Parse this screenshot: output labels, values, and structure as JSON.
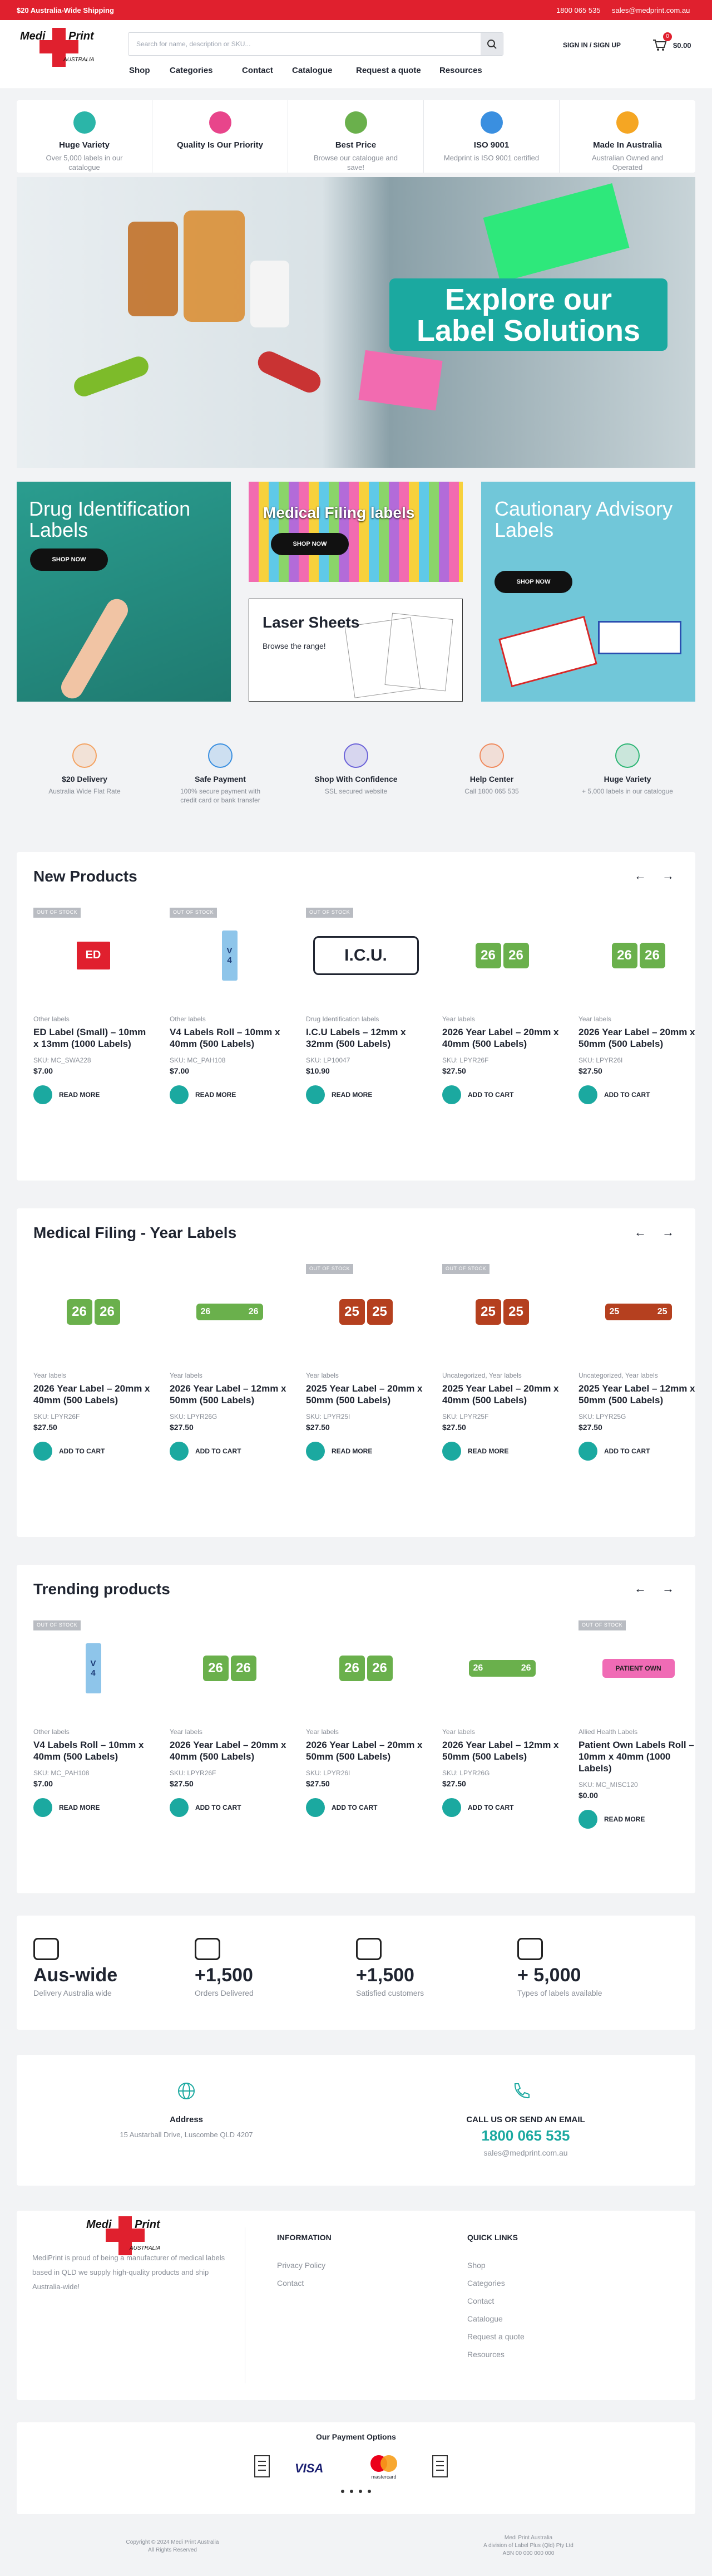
{
  "topbar": {
    "promo": "$20 Australia-Wide Shipping",
    "phone": "1800 065 535",
    "email": "sales@medprint.com.au"
  },
  "header": {
    "logo_main": "Medi Print",
    "logo_sub": "AUSTRALIA",
    "search_placeholder": "Search for name, description or SKU...",
    "signin": "SIGN IN / SIGN UP",
    "cart_count": "0",
    "cart_total": "$0.00",
    "nav": [
      "Shop",
      "Categories",
      "Contact",
      "Catalogue",
      "Request a quote",
      "Resources"
    ]
  },
  "features": [
    {
      "title": "Huge Variety",
      "text": "Over 5,000 labels in our catalogue",
      "color": "#2bb5a8"
    },
    {
      "title": "Quality Is Our Priority",
      "color": "#e8458b"
    },
    {
      "title": "Best Price",
      "text": "Browse our catalogue and save!",
      "color": "#6ab04c"
    },
    {
      "title": "ISO 9001",
      "text": "Medprint is ISO 9001 certified",
      "color": "#3a8fe0"
    },
    {
      "title": "Made In Australia",
      "text": "Australian Owned and Operated",
      "color": "#f5a623"
    }
  ],
  "hero": {
    "lines": [
      "Explore our",
      "Label Solutions"
    ]
  },
  "promos": [
    {
      "title": "Drug Identification Labels",
      "button": "SHOP NOW"
    },
    {
      "title": "Medical Filing labels",
      "button": "SHOP NOW"
    },
    {
      "title": "Laser Sheets",
      "text": "Browse the range!"
    },
    {
      "title": "Cautionary Advisory Labels",
      "button": "SHOP NOW"
    }
  ],
  "services": [
    {
      "title": "$20 Delivery",
      "text": "Australia Wide Flat Rate",
      "color": "#f4a261"
    },
    {
      "title": "Safe Payment",
      "text": "100% secure payment with credit card or bank transfer",
      "color": "#3a8fe0"
    },
    {
      "title": "Shop With Confidence",
      "text": "SSL secured website",
      "color": "#6c63d9"
    },
    {
      "title": "Help Center",
      "text": "Call 1800 065 535",
      "color": "#f08a5d"
    },
    {
      "title": "Huge Variety",
      "text": "+ 5,000 labels in our catalogue",
      "color": "#2bb573"
    }
  ],
  "sections": [
    {
      "title": "New Products",
      "products": [
        {
          "badge": "OUT OF STOCK",
          "category": "Other labels",
          "name": "ED Label (Small) – 10mm x 13mm (1000 Labels)",
          "sku": "SKU: MC_SWA228",
          "price": "$7.00",
          "button": "READ MORE",
          "thumb": {
            "shape": "tag",
            "color": "#e0202e",
            "text": [
              "ED"
            ]
          }
        },
        {
          "badge": "OUT OF STOCK",
          "category": "Other labels",
          "name": "V4 Labels Roll – 10mm x 40mm (500 Labels)",
          "sku": "SKU: MC_PAH108",
          "price": "$7.00",
          "button": "READ MORE",
          "thumb": {
            "shape": "roll",
            "color": "#8ec5ea",
            "text": [
              "V",
              "4"
            ]
          }
        },
        {
          "badge": "OUT OF STOCK",
          "category": "Drug Identification labels",
          "name": "I.C.U Labels – 12mm x 32mm (500 Labels)",
          "sku": "SKU: LP10047",
          "price": "$10.90",
          "button": "READ MORE",
          "thumb": {
            "shape": "outline",
            "color": "#1f2430",
            "text": [
              "I.C.U."
            ]
          }
        },
        {
          "category": "Year labels",
          "name": "2026 Year Label – 20mm x 40mm (500 Labels)",
          "sku": "SKU: LPYR26F",
          "price": "$27.50",
          "button": "ADD TO CART",
          "thumb": {
            "shape": "pair",
            "color": "#6ab04c",
            "text": [
              "26",
              "26"
            ]
          }
        },
        {
          "category": "Year labels",
          "name": "2026 Year Label – 20mm x 50mm (500 Labels)",
          "sku": "SKU: LPYR26I",
          "price": "$27.50",
          "button": "ADD TO CART",
          "thumb": {
            "shape": "pair",
            "color": "#6ab04c",
            "text": [
              "26",
              "26"
            ]
          }
        }
      ]
    },
    {
      "title": "Medical Filing - Year Labels",
      "products": [
        {
          "category": "Year labels",
          "name": "2026 Year Label – 20mm x 40mm (500 Labels)",
          "sku": "SKU: LPYR26F",
          "price": "$27.50",
          "button": "ADD TO CART",
          "thumb": {
            "shape": "pair",
            "color": "#6ab04c",
            "text": [
              "26",
              "26"
            ]
          }
        },
        {
          "category": "Year labels",
          "name": "2026 Year Label – 12mm x 50mm (500 Labels)",
          "sku": "SKU: LPYR26G",
          "price": "$27.50",
          "button": "ADD TO CART",
          "thumb": {
            "shape": "strip",
            "color": "#6ab04c",
            "text": [
              "26",
              "26"
            ]
          }
        },
        {
          "badge": "OUT OF STOCK",
          "category": "Year labels",
          "name": "2025 Year Label – 20mm x 50mm (500 Labels)",
          "sku": "SKU: LPYR25I",
          "price": "$27.50",
          "button": "READ MORE",
          "thumb": {
            "shape": "pair",
            "color": "#b5401f",
            "text": [
              "25",
              "25"
            ]
          }
        },
        {
          "badge": "OUT OF STOCK",
          "category": "Uncategorized, Year labels",
          "name": "2025 Year Label – 20mm x 40mm (500 Labels)",
          "sku": "SKU: LPYR25F",
          "price": "$27.50",
          "button": "READ MORE",
          "thumb": {
            "shape": "pair",
            "color": "#b5401f",
            "text": [
              "25",
              "25"
            ]
          }
        },
        {
          "category": "Uncategorized, Year labels",
          "name": "2025 Year Label – 12mm x 50mm (500 Labels)",
          "sku": "SKU: LPYR25G",
          "price": "$27.50",
          "button": "ADD TO CART",
          "thumb": {
            "shape": "strip",
            "color": "#b5401f",
            "text": [
              "25",
              "25"
            ]
          }
        }
      ]
    },
    {
      "title": "Trending products",
      "products": [
        {
          "badge": "OUT OF STOCK",
          "category": "Other labels",
          "name": "V4 Labels Roll – 10mm x 40mm (500 Labels)",
          "sku": "SKU: MC_PAH108",
          "price": "$7.00",
          "button": "READ MORE",
          "thumb": {
            "shape": "roll",
            "color": "#8ec5ea",
            "text": [
              "V",
              "4"
            ]
          }
        },
        {
          "category": "Year labels",
          "name": "2026 Year Label – 20mm x 40mm (500 Labels)",
          "sku": "SKU: LPYR26F",
          "price": "$27.50",
          "button": "ADD TO CART",
          "thumb": {
            "shape": "pair",
            "color": "#6ab04c",
            "text": [
              "26",
              "26"
            ]
          }
        },
        {
          "category": "Year labels",
          "name": "2026 Year Label – 20mm x 50mm (500 Labels)",
          "sku": "SKU: LPYR26I",
          "price": "$27.50",
          "button": "ADD TO CART",
          "thumb": {
            "shape": "pair",
            "color": "#6ab04c",
            "text": [
              "26",
              "26"
            ]
          }
        },
        {
          "category": "Year labels",
          "name": "2026 Year Label – 12mm x 50mm (500 Labels)",
          "sku": "SKU: LPYR26G",
          "price": "$27.50",
          "button": "ADD TO CART",
          "thumb": {
            "shape": "strip",
            "color": "#6ab04c",
            "text": [
              "26",
              "26"
            ]
          }
        },
        {
          "badge": "OUT OF STOCK",
          "category": "Allied Health Labels",
          "name": "Patient Own Labels Roll – 10mm x 40mm (1000 Labels)",
          "sku": "SKU: MC_MISC120",
          "price": "$0.00",
          "button": "READ MORE",
          "thumb": {
            "shape": "pill",
            "color": "#f06bb5",
            "text": [
              "PATIENT OWN"
            ]
          }
        }
      ]
    }
  ],
  "stats": [
    {
      "value": "Aus-wide",
      "text": "Delivery Australia wide"
    },
    {
      "value": "+1,500",
      "text": "Orders Delivered"
    },
    {
      "value": "+1,500",
      "text": "Satisfied customers"
    },
    {
      "value": "+ 5,000",
      "text": "Types of labels available"
    }
  ],
  "contact": {
    "address_title": "Address",
    "address": "15 Austarball Drive, Luscombe QLD 4207",
    "call_title": "CALL US OR SEND AN EMAIL",
    "phone": "1800 065 535",
    "email": "sales@medprint.com.au"
  },
  "footer": {
    "about": "MediPrint is proud of being a manufacturer of medical labels based in QLD we supply high-quality products and ship Australia-wide!",
    "info_title": "INFORMATION",
    "info_links": [
      "Privacy Policy",
      "Contact"
    ],
    "quick_title": "QUICK LINKS",
    "quick_links": [
      "Shop",
      "Categories",
      "Contact",
      "Catalogue",
      "Request a quote",
      "Resources"
    ]
  },
  "payment": {
    "title": "Our Payment Options",
    "methods": [
      "VISA",
      "mastercard"
    ]
  },
  "bottom": {
    "copyright": "Copyright © 2024 Medi Print Australia",
    "rights": "All Rights Reserved",
    "company": "Medi Print Australia",
    "division": "A division of Label Plus (Qld) Pty Ltd",
    "abn": "ABN 00 000 000 000"
  }
}
